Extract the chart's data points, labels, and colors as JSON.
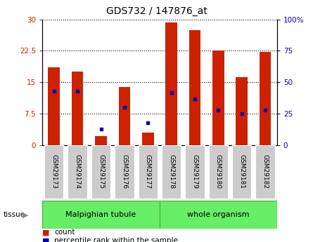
{
  "title": "GDS732 / 147876_at",
  "samples": [
    "GSM29173",
    "GSM29174",
    "GSM29175",
    "GSM29176",
    "GSM29177",
    "GSM29178",
    "GSM29179",
    "GSM29180",
    "GSM29181",
    "GSM29182"
  ],
  "count_values": [
    18.5,
    17.5,
    2.2,
    13.8,
    3.0,
    29.2,
    27.5,
    22.5,
    16.2,
    22.2
  ],
  "percentile_values": [
    43,
    43,
    13,
    30,
    18,
    42,
    37,
    28,
    25,
    28
  ],
  "ylim_left": [
    0,
    30
  ],
  "ylim_right": [
    0,
    100
  ],
  "yticks_left": [
    0,
    7.5,
    15,
    22.5,
    30
  ],
  "ytick_labels_left": [
    "0",
    "7.5",
    "15",
    "22.5",
    "30"
  ],
  "yticks_right": [
    0,
    25,
    50,
    75,
    100
  ],
  "ytick_labels_right": [
    "0",
    "25",
    "50",
    "75",
    "100%"
  ],
  "groups": [
    {
      "label": "Malpighian tubule",
      "start": 0,
      "end": 5
    },
    {
      "label": "whole organism",
      "start": 5,
      "end": 10
    }
  ],
  "bar_color": "#CC2200",
  "dot_color": "#0000BB",
  "tissue_label": "tissue",
  "legend_items": [
    {
      "label": "count",
      "color": "#CC2200"
    },
    {
      "label": "percentile rank within the sample",
      "color": "#0000BB"
    }
  ],
  "bar_width": 0.5,
  "bg_color": "#FFFFFF",
  "plot_bg": "#FFFFFF",
  "tick_bg": "#CCCCCC",
  "green_color": "#66EE66",
  "green_border": "#44AA44"
}
